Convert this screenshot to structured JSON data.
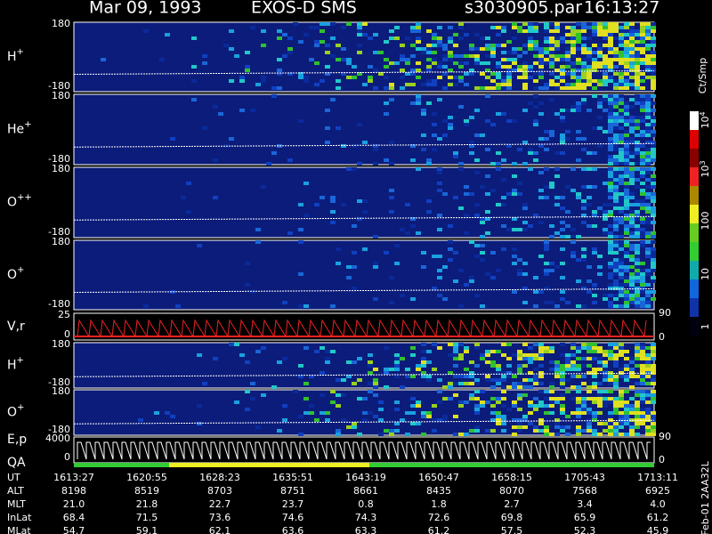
{
  "header": {
    "date": "Mar 09, 1993",
    "instrument": "EXOS-D SMS",
    "file": "s3030905.par",
    "time": "16:13:27"
  },
  "panels": [
    {
      "label": "H",
      "sup": "+",
      "ticks": [
        "180",
        "-180"
      ]
    },
    {
      "label": "He",
      "sup": "+",
      "ticks": [
        "180",
        "-180"
      ]
    },
    {
      "label": "O",
      "sup": "++",
      "ticks": [
        "180",
        "-180"
      ]
    },
    {
      "label": "O",
      "sup": "+",
      "ticks": [
        "180",
        "-180"
      ]
    },
    {
      "label": "V,r",
      "ticks": [
        "25",
        "0"
      ],
      "right_ticks": [
        "90",
        "0"
      ]
    },
    {
      "label": "H",
      "sup": "+",
      "ticks": [
        "180",
        "-180"
      ]
    },
    {
      "label": "O",
      "sup": "+",
      "ticks": [
        "180",
        "-180"
      ]
    },
    {
      "label": "E,p",
      "label2": "QA",
      "ticks": [
        "4000",
        "0"
      ],
      "right_ticks": [
        "90",
        "0"
      ]
    }
  ],
  "colorbar": {
    "unit": "Ct/Smp",
    "ticks": [
      {
        "base": "10",
        "exp": "4"
      },
      {
        "base": "10",
        "exp": "3"
      },
      {
        "base": "100"
      },
      {
        "base": "10"
      },
      {
        "base": "1"
      }
    ]
  },
  "table": {
    "row_labels": [
      "UT",
      "ALT",
      "MLT",
      "InLat",
      "MLat"
    ],
    "rows": [
      [
        "1613:27",
        "1620:55",
        "1628:23",
        "1635:51",
        "1643:19",
        "1650:47",
        "1658:15",
        "1705:43",
        "1713:11"
      ],
      [
        "8198",
        "8519",
        "8703",
        "8751",
        "8661",
        "8435",
        "8070",
        "7568",
        "6925"
      ],
      [
        "21.0",
        "21.8",
        "22.7",
        "23.7",
        "0.8",
        "1.8",
        "2.7",
        "3.4",
        "4.0"
      ],
      [
        "68.4",
        "71.5",
        "73.6",
        "74.6",
        "74.3",
        "72.6",
        "69.8",
        "65.9",
        "61.2"
      ],
      [
        "54.7",
        "59.1",
        "62.1",
        "63.6",
        "63.3",
        "61.2",
        "57.5",
        "52.3",
        "45.9"
      ]
    ]
  },
  "side_label": "Feb-01 2AA32L"
}
